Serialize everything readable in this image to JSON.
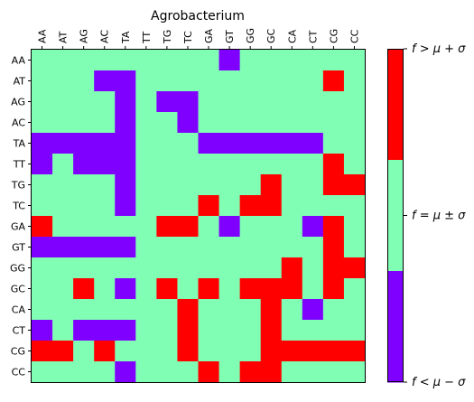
{
  "chart_data": {
    "type": "heatmap",
    "title": "Agrobacterium",
    "xlabel": "",
    "ylabel": "",
    "x_labels": [
      "AA",
      "AT",
      "AG",
      "AC",
      "TA",
      "TT",
      "TG",
      "TC",
      "GA",
      "GT",
      "GG",
      "GC",
      "CA",
      "CT",
      "CG",
      "CC"
    ],
    "y_labels": [
      "AA",
      "AT",
      "AG",
      "AC",
      "TA",
      "TT",
      "TG",
      "TC",
      "GA",
      "GT",
      "GG",
      "GC",
      "CA",
      "CT",
      "CG",
      "CC"
    ],
    "x_axis_position": "top",
    "value_meaning": {
      "-1": "f<μ−σ",
      "0": "f=μ±σ",
      "1": "f>μ+σ"
    },
    "matrix": [
      [
        0,
        0,
        0,
        0,
        0,
        0,
        0,
        0,
        0,
        -1,
        0,
        0,
        0,
        0,
        0,
        0
      ],
      [
        0,
        0,
        0,
        -1,
        -1,
        0,
        0,
        0,
        0,
        0,
        0,
        0,
        0,
        0,
        1,
        0
      ],
      [
        0,
        0,
        0,
        0,
        -1,
        0,
        -1,
        -1,
        0,
        0,
        0,
        0,
        0,
        0,
        0,
        0
      ],
      [
        0,
        0,
        0,
        0,
        -1,
        0,
        0,
        -1,
        0,
        0,
        0,
        0,
        0,
        0,
        0,
        0
      ],
      [
        -1,
        -1,
        -1,
        -1,
        -1,
        0,
        0,
        0,
        -1,
        -1,
        -1,
        -1,
        -1,
        -1,
        0,
        0
      ],
      [
        -1,
        0,
        -1,
        -1,
        -1,
        0,
        0,
        0,
        0,
        0,
        0,
        0,
        0,
        0,
        1,
        0
      ],
      [
        0,
        0,
        0,
        0,
        -1,
        0,
        0,
        0,
        0,
        0,
        0,
        1,
        0,
        0,
        1,
        1
      ],
      [
        0,
        0,
        0,
        0,
        -1,
        0,
        0,
        0,
        1,
        0,
        1,
        1,
        0,
        0,
        0,
        0
      ],
      [
        1,
        0,
        0,
        0,
        0,
        0,
        1,
        1,
        0,
        -1,
        0,
        0,
        0,
        -1,
        1,
        0
      ],
      [
        -1,
        -1,
        -1,
        -1,
        -1,
        0,
        0,
        0,
        0,
        0,
        0,
        0,
        0,
        0,
        1,
        0
      ],
      [
        0,
        0,
        0,
        0,
        0,
        0,
        0,
        0,
        0,
        0,
        0,
        0,
        1,
        0,
        1,
        1
      ],
      [
        0,
        0,
        1,
        0,
        -1,
        0,
        1,
        0,
        1,
        0,
        1,
        1,
        1,
        0,
        1,
        0
      ],
      [
        0,
        0,
        0,
        0,
        0,
        0,
        0,
        1,
        0,
        0,
        0,
        1,
        0,
        -1,
        0,
        0
      ],
      [
        -1,
        0,
        -1,
        -1,
        -1,
        0,
        0,
        1,
        0,
        0,
        0,
        1,
        0,
        0,
        0,
        0
      ],
      [
        1,
        1,
        0,
        1,
        0,
        0,
        0,
        1,
        0,
        0,
        0,
        1,
        1,
        1,
        1,
        1
      ],
      [
        0,
        0,
        0,
        0,
        -1,
        0,
        0,
        0,
        1,
        0,
        1,
        1,
        0,
        0,
        0,
        0
      ]
    ],
    "colors": {
      "low": "#8000ff",
      "mid": "#80ffb4",
      "high": "#ff0000"
    },
    "colorbar": {
      "labels": [
        "f > μ + σ",
        "f = μ ± σ",
        "f < μ − σ"
      ]
    },
    "grid": false
  }
}
